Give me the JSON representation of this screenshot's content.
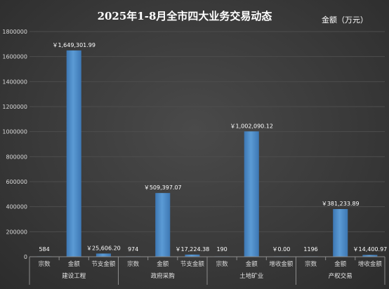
{
  "chart_data": {
    "type": "bar",
    "title": "2025年1-8月全市四大业务交易动态",
    "unit_label": "金额（万元）",
    "ylim": [
      0,
      1800000
    ],
    "y_ticks": [
      0,
      200000,
      400000,
      600000,
      800000,
      1000000,
      1200000,
      1400000,
      1600000,
      1800000
    ],
    "y_tick_labels": [
      "0",
      "200000",
      "400000",
      "600000",
      "800000",
      "1000000",
      "1200000",
      "1400000",
      "1600000",
      "1800000"
    ],
    "grid": true,
    "colors": {
      "bar": "#5b9bd5",
      "bar_dark": "#3d77b3",
      "label": "#ffffff",
      "grid": "#4d4d4d"
    },
    "groups": [
      {
        "name": "建设工程",
        "categories": [
          "宗数",
          "金额",
          "节支金额"
        ],
        "values": [
          584,
          1649301.99,
          25606.2
        ],
        "labels": [
          "584",
          "￥1,649,301.99",
          "￥25,606.20"
        ]
      },
      {
        "name": "政府采购",
        "categories": [
          "宗数",
          "金额",
          "节支金额"
        ],
        "values": [
          974,
          509397.07,
          17224.38
        ],
        "labels": [
          "974",
          "￥509,397.07",
          "￥17,224.38"
        ]
      },
      {
        "name": "土地矿业",
        "categories": [
          "宗数",
          "金额",
          "增收金额"
        ],
        "values": [
          190,
          1002090.12,
          0
        ],
        "labels": [
          "190",
          "￥1,002,090.12",
          "￥0.00"
        ]
      },
      {
        "name": "产权交易",
        "categories": [
          "宗数",
          "金额",
          "增收金额"
        ],
        "values": [
          1196,
          381233.89,
          14400.97
        ],
        "labels": [
          "1196",
          "￥381,233.89",
          "￥14,400.97"
        ]
      }
    ]
  }
}
